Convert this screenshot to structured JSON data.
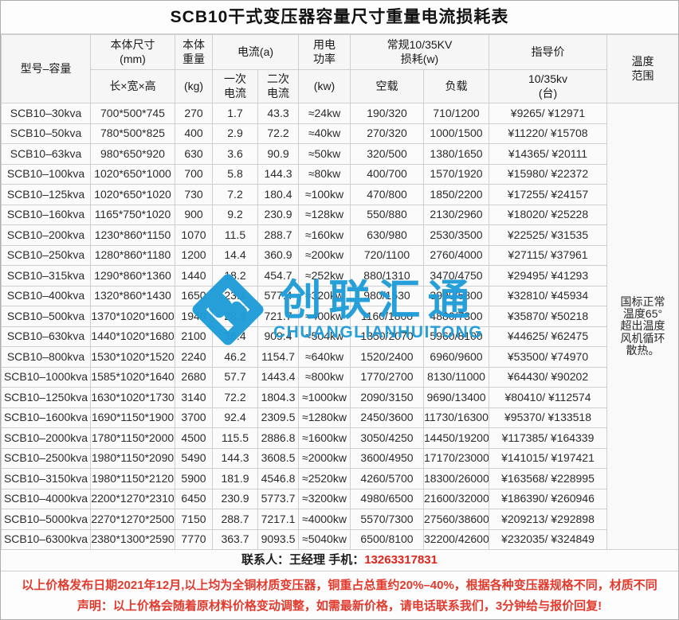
{
  "title": "SCB10干式变压器容量尺寸重量电流损耗表",
  "header": {
    "model": "型号–容量",
    "size_top": "本体尺寸\n(mm)",
    "size_sub": "长×宽×高",
    "weight_top": "本体\n重量",
    "weight_sub": "(kg)",
    "current_group": "电流(a)",
    "current_primary": "一次\n电流",
    "current_secondary": "二次\n电流",
    "power_top": "用电\n功率",
    "power_sub": "(kw)",
    "loss_group": "常规10/35KV\n损耗(w)",
    "loss_noload": "空载",
    "loss_load": "负载",
    "price_top": "指导价",
    "price_sub": "10/35kv\n(台)",
    "temp": "温度\n范围"
  },
  "temp_note": "国标正常\n温度65°\n超出温度\n风机循环\n散热。",
  "table": {
    "rows": [
      {
        "model": "SCB10–30kva",
        "size": "700*500*745",
        "weight": "270",
        "i1": "1.7",
        "i2": "43.3",
        "power": "≈24kw",
        "noload": "190/320",
        "load": "710/1200",
        "price": "¥9265/ ¥12971"
      },
      {
        "model": "SCB10–50kva",
        "size": "780*500*825",
        "weight": "400",
        "i1": "2.9",
        "i2": "72.2",
        "power": "≈40kw",
        "noload": "270/320",
        "load": "1000/1500",
        "price": "¥11220/ ¥15708"
      },
      {
        "model": "SCB10–63kva",
        "size": "980*650*920",
        "weight": "630",
        "i1": "3.6",
        "i2": "90.9",
        "power": "≈50kw",
        "noload": "320/500",
        "load": "1380/1650",
        "price": "¥14365/ ¥20111"
      },
      {
        "model": "SCB10–100kva",
        "size": "1020*650*1000",
        "weight": "700",
        "i1": "5.8",
        "i2": "144.3",
        "power": "≈80kw",
        "noload": "400/700",
        "load": "1570/1920",
        "price": "¥15980/ ¥22372"
      },
      {
        "model": "SCB10–125kva",
        "size": "1020*650*1020",
        "weight": "730",
        "i1": "7.2",
        "i2": "180.4",
        "power": "≈100kw",
        "noload": "470/800",
        "load": "1850/2200",
        "price": "¥17255/ ¥24157"
      },
      {
        "model": "SCB10–160kva",
        "size": "1165*750*1020",
        "weight": "900",
        "i1": "9.2",
        "i2": "230.9",
        "power": "≈128kw",
        "noload": "550/880",
        "load": "2130/2960",
        "price": "¥18020/ ¥25228"
      },
      {
        "model": "SCB10–200kva",
        "size": "1230*860*1150",
        "weight": "1070",
        "i1": "11.5",
        "i2": "288.7",
        "power": "≈160kw",
        "noload": "630/980",
        "load": "2530/3500",
        "price": "¥22525/ ¥31535"
      },
      {
        "model": "SCB10–250kva",
        "size": "1280*860*1180",
        "weight": "1200",
        "i1": "14.4",
        "i2": "360.9",
        "power": "≈200kw",
        "noload": "720/1100",
        "load": "2760/4000",
        "price": "¥27115/ ¥37961"
      },
      {
        "model": "SCB10–315kva",
        "size": "1290*860*1360",
        "weight": "1440",
        "i1": "18.2",
        "i2": "454.7",
        "power": "≈252kw",
        "noload": "880/1310",
        "load": "3470/4750",
        "price": "¥29495/ ¥41293"
      },
      {
        "model": "SCB10–400kva",
        "size": "1320*860*1430",
        "weight": "1650",
        "i1": "23.1",
        "i2": "577.4",
        "power": "≈320kw",
        "noload": "980/1530",
        "load": "3990/5800",
        "price": "¥32810/ ¥45934"
      },
      {
        "model": "SCB10–500kva",
        "size": "1370*1020*1600",
        "weight": "1940",
        "i1": "28.9",
        "i2": "721.7",
        "power": "≈400kw",
        "noload": "1160/1800",
        "load": "4880/7300",
        "price": "¥35870/ ¥50218"
      },
      {
        "model": "SCB10–630kva",
        "size": "1440*1020*1680",
        "weight": "2100",
        "i1": "36.4",
        "i2": "909.4",
        "power": "≈504kw",
        "noload": "1350/2070",
        "load": "5960/8100",
        "price": "¥44625/ ¥62475"
      },
      {
        "model": "SCB10–800kva",
        "size": "1530*1020*1520",
        "weight": "2240",
        "i1": "46.2",
        "i2": "1154.7",
        "power": "≈640kw",
        "noload": "1520/2400",
        "load": "6960/9600",
        "price": "¥53500/ ¥74970"
      },
      {
        "model": "SCB10–1000kva",
        "size": "1585*1020*1640",
        "weight": "2680",
        "i1": "57.7",
        "i2": "1443.4",
        "power": "≈800kw",
        "noload": "1770/2700",
        "load": "8130/11000",
        "price": "¥64430/ ¥90202"
      },
      {
        "model": "SCB10–1250kva",
        "size": "1630*1020*1730",
        "weight": "3140",
        "i1": "72.2",
        "i2": "1804.3",
        "power": "≈1000kw",
        "noload": "2090/3150",
        "load": "9690/13400",
        "price": "¥80410/ ¥112574"
      },
      {
        "model": "SCB10–1600kva",
        "size": "1690*1150*1900",
        "weight": "3700",
        "i1": "92.4",
        "i2": "2309.5",
        "power": "≈1280kw",
        "noload": "2450/3600",
        "load": "11730/16300",
        "price": "¥95370/ ¥133518"
      },
      {
        "model": "SCB10–2000kva",
        "size": "1780*1150*2000",
        "weight": "4500",
        "i1": "115.5",
        "i2": "2886.8",
        "power": "≈1600kw",
        "noload": "3050/4250",
        "load": "14450/19200",
        "price": "¥117385/ ¥164339"
      },
      {
        "model": "SCB10–2500kva",
        "size": "1980*1150*2090",
        "weight": "5490",
        "i1": "144.3",
        "i2": "3608.5",
        "power": "≈2000kw",
        "noload": "3600/4950",
        "load": "17170/23000",
        "price": "¥141015/ ¥197421"
      },
      {
        "model": "SCB10–3150kva",
        "size": "1980*1150*2120",
        "weight": "5900",
        "i1": "181.9",
        "i2": "4546.8",
        "power": "≈2520kw",
        "noload": "4260/5700",
        "load": "18300/26000",
        "price": "¥163568/ ¥228995"
      },
      {
        "model": "SCB10–4000kva",
        "size": "2200*1270*2310",
        "weight": "6450",
        "i1": "230.9",
        "i2": "5773.7",
        "power": "≈3200kw",
        "noload": "4980/6500",
        "load": "21600/32000",
        "price": "¥186390/ ¥260946"
      },
      {
        "model": "SCB10–5000kva",
        "size": "2270*1270*2500",
        "weight": "7150",
        "i1": "288.7",
        "i2": "7217.1",
        "power": "≈4000kw",
        "noload": "5570/7300",
        "load": "27560/38600",
        "price": "¥209213/ ¥292898"
      },
      {
        "model": "SCB10–6300kva",
        "size": "2380*1300*2590",
        "weight": "7770",
        "i1": "363.7",
        "i2": "9093.5",
        "power": "≈5040kw",
        "noload": "6500/8100",
        "load": "32200/42600",
        "price": "¥232035/ ¥324849"
      }
    ]
  },
  "contact": {
    "label": "联系人：王经理  手机：",
    "phone": "13263317831"
  },
  "notes": [
    "以上价格发布日期2021年12月,以上均为全铜材质变压器，铜重占总重约20%–40%，根据各种变压器规格不同，材质不同",
    "声明：以上价格会随着原材料价格变动调整，如需最新价格，请电话联系我们，3分钟给与报价回复!"
  ],
  "watermark": {
    "name_cn": "创联汇通",
    "name_en": "CHUANGLIANHUITONG",
    "color": "#1f9cd8"
  }
}
